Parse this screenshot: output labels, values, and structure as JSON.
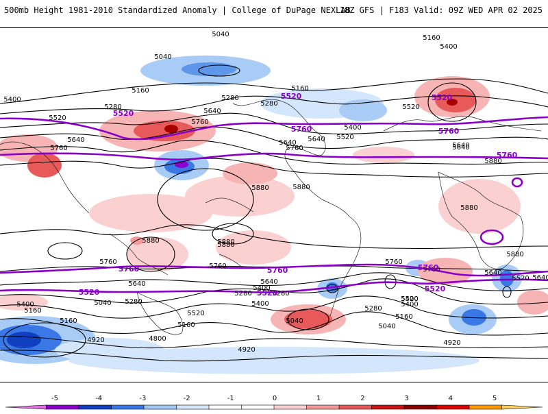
{
  "header": {
    "left_title": "500mb Height 1981-2010 Standardized Anomaly | College of DuPage NEXLAB",
    "right_title": "18Z GFS | F183 Valid: 09Z WED APR 02 2025"
  },
  "colorbar": {
    "ticks": [
      "-5",
      "-4",
      "-3",
      "-2",
      "-1",
      "0",
      "1",
      "2",
      "3",
      "4",
      "5"
    ],
    "colors": [
      "#e070e0",
      "#8a00c8",
      "#1040c0",
      "#3a78e6",
      "#a0c8f5",
      "#d4e6fb",
      "#ffffff",
      "#ffffff",
      "#fbd0d0",
      "#f59a9a",
      "#e85a5a",
      "#c81414",
      "#8a0000",
      "#d90000",
      "#ff9a00",
      "#ffd060"
    ]
  },
  "map": {
    "height_contour_labels": [
      "5040",
      "5040",
      "5160",
      "5160",
      "5160",
      "5400",
      "5400",
      "5280",
      "5280",
      "5280",
      "5520",
      "5520",
      "5640",
      "5640",
      "5760",
      "5760",
      "5400",
      "5520",
      "5640",
      "5640",
      "5760",
      "5880",
      "5880",
      "5880",
      "5880",
      "5880",
      "5880",
      "5760",
      "5760",
      "5640",
      "5640",
      "5400",
      "5280",
      "5520",
      "5400",
      "5520",
      "5280",
      "5040",
      "5160",
      "5040",
      "5280",
      "5160",
      "4920",
      "4920",
      "4800",
      "4920",
      "5160",
      "5040",
      "5280",
      "5400",
      "5400",
      "5640",
      "5880",
      "5400",
      "5160",
      "5640",
      "5760",
      "5520",
      "5640",
      "5640",
      "5880",
      "5760"
    ],
    "highlight_labels": [
      "5520",
      "5520",
      "5520",
      "5520",
      "5760",
      "5760",
      "5760",
      "5760",
      "5760",
      "5760",
      "5520",
      "5520"
    ]
  }
}
